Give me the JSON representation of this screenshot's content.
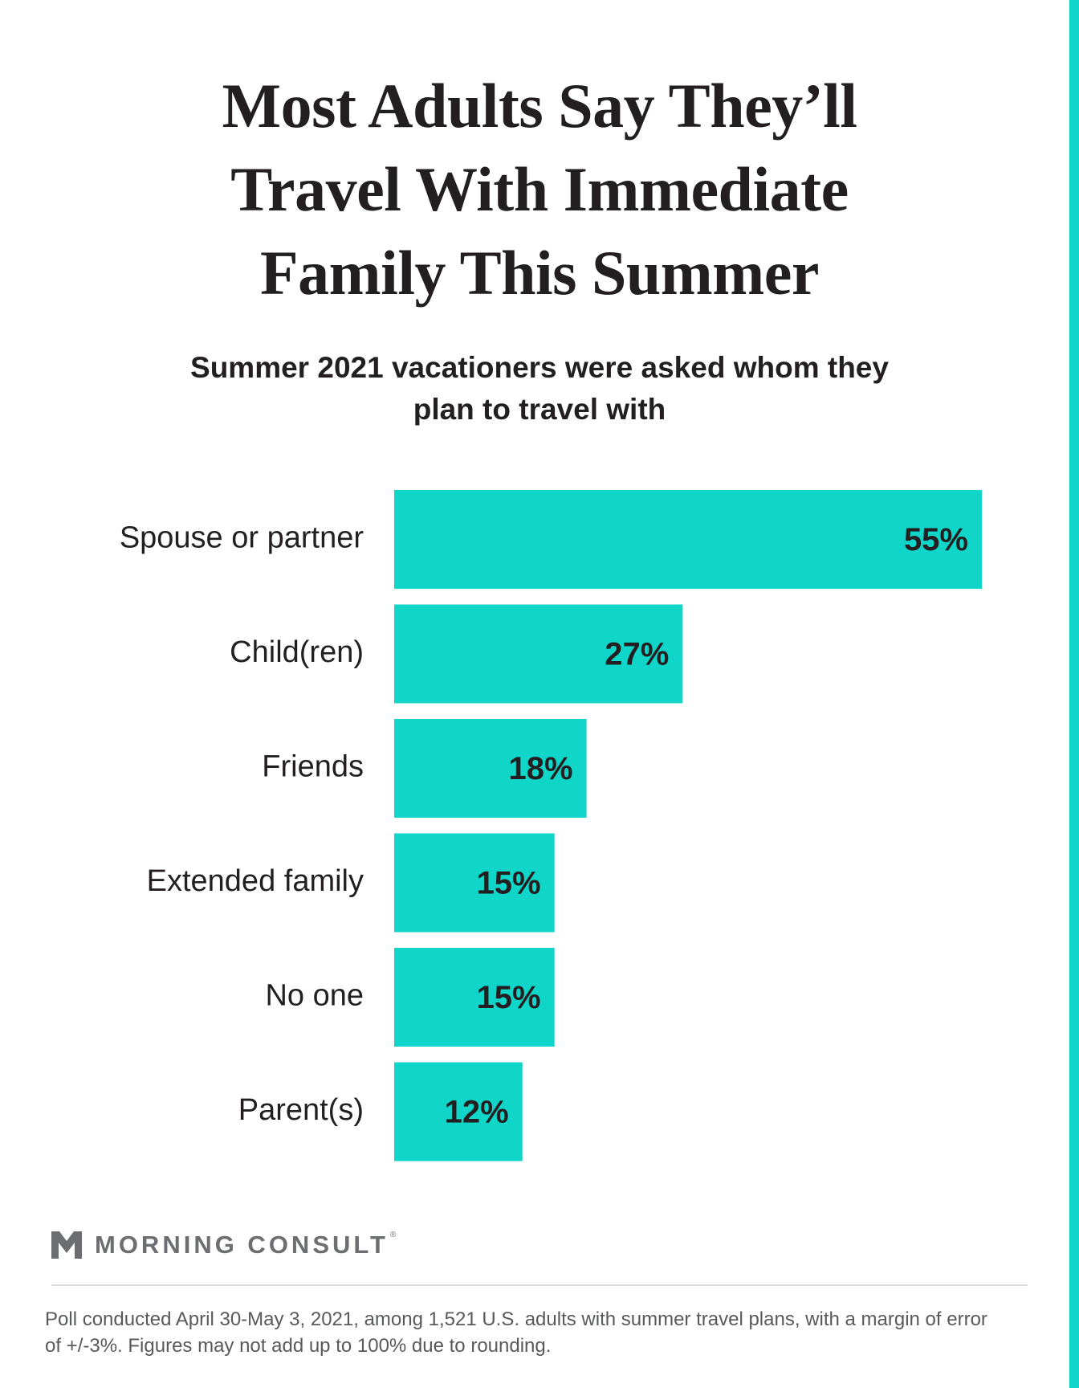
{
  "colors": {
    "accent": "#10d5c9",
    "text_dark": "#231f20",
    "logo_gray": "#6d6e71",
    "footnote_gray": "#58595b"
  },
  "header": {
    "title": "Most Adults Say They’ll Travel With Immediate Family This Summer",
    "subtitle": "Summer 2021 vacationers were asked whom they plan to travel with"
  },
  "brand": {
    "icon": "morning-consult-logo-icon",
    "name": "MORNING CONSULT",
    "reg": "®"
  },
  "footnote": "Poll conducted April 30-May 3, 2021, among 1,521 U.S. adults with summer travel plans, with a margin of error of +/-3%. Figures may not add up to 100% due to rounding.",
  "chart_data": {
    "type": "bar",
    "orientation": "horizontal",
    "title": "Most Adults Say They’ll Travel With Immediate Family This Summer",
    "subtitle": "Summer 2021 vacationers were asked whom they plan to travel with",
    "categories": [
      "Spouse or partner",
      "Child(ren)",
      "Friends",
      "Extended family",
      "No one",
      "Parent(s)"
    ],
    "values": [
      55,
      27,
      18,
      15,
      15,
      12
    ],
    "data_labels": [
      "55%",
      "27%",
      "18%",
      "15%",
      "15%",
      "12%"
    ],
    "xlabel": "",
    "ylabel": "",
    "xlim": [
      0,
      55
    ],
    "grid": false,
    "legend": "none",
    "bar_color": "#10d5c9"
  }
}
